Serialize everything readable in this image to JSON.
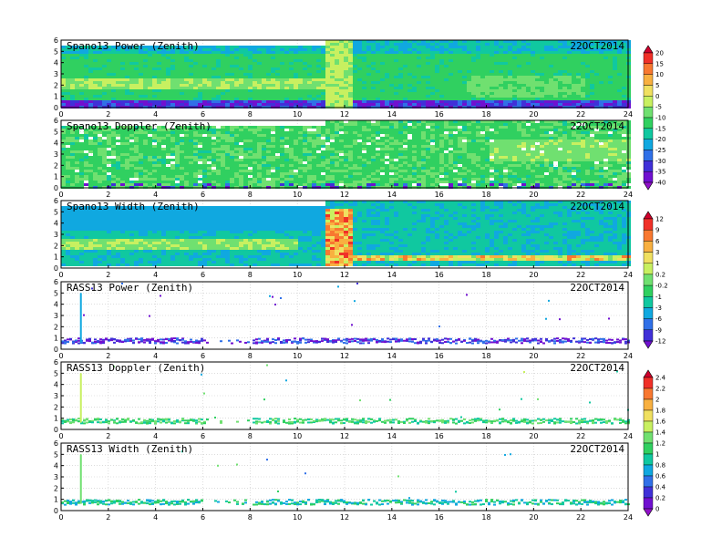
{
  "panels": [
    {
      "title": "Spano13 Power (Zenith)",
      "date": "22OCT2014",
      "kind": "power",
      "colorbar": 0
    },
    {
      "title": "Spano13 Doppler (Zenith)",
      "date": "22OCT2014",
      "kind": "doppler",
      "colorbar": 0
    },
    {
      "title": "Spano13 Width (Zenith)",
      "date": "22OCT2014",
      "kind": "width",
      "colorbar": 1
    },
    {
      "title": "RASS13 Power (Zenith)",
      "date": "22OCT2014",
      "kind": "rass_power",
      "colorbar": 1
    },
    {
      "title": "RASS13 Doppler (Zenith)",
      "date": "22OCT2014",
      "kind": "rass_doppler",
      "colorbar": 2
    },
    {
      "title": "RASS13 Width (Zenith)",
      "date": "22OCT2014",
      "kind": "rass_width",
      "colorbar": 2
    }
  ],
  "colorbars": [
    {
      "labels": [
        "20",
        "15",
        "10",
        "5",
        "0",
        "-5",
        "-10",
        "-15",
        "-20",
        "-25",
        "-30",
        "-35",
        "-40"
      ],
      "colors": [
        "#d0002c",
        "#f03028",
        "#f87830",
        "#f8b040",
        "#f0e060",
        "#c8f060",
        "#70e070",
        "#30d060",
        "#10c8a0",
        "#10a8e0",
        "#3070e8",
        "#4030d8",
        "#7010d0",
        "#9010c8"
      ]
    },
    {
      "labels": [
        "12",
        "9",
        "6",
        "3",
        "1",
        "0.2",
        "-0.2",
        "-1",
        "-3",
        "-6",
        "-9",
        "-12"
      ],
      "colors": [
        "#d0002c",
        "#f03028",
        "#f87830",
        "#f8b040",
        "#f0e060",
        "#c8f060",
        "#70e070",
        "#30d060",
        "#10c8a0",
        "#10a8e0",
        "#3070e8",
        "#4030d8",
        "#7010d0"
      ]
    },
    {
      "labels": [
        "2.4",
        "2.2",
        "2",
        "1.8",
        "1.6",
        "1.4",
        "1.2",
        "1",
        "0.8",
        "0.6",
        "0.4",
        "0.2",
        "0"
      ],
      "colors": [
        "#d0002c",
        "#f03028",
        "#f87830",
        "#f8b040",
        "#f0e060",
        "#c8f060",
        "#70e070",
        "#30d060",
        "#10c8a0",
        "#10a8e0",
        "#3070e8",
        "#4030d8",
        "#7010d0",
        "#9010c8"
      ]
    }
  ],
  "chart_data": {
    "type": "heatmap",
    "x_ticks": [
      "0",
      "2",
      "4",
      "6",
      "8",
      "10",
      "12",
      "14",
      "16",
      "18",
      "20",
      "22",
      "24"
    ],
    "y_ticks": [
      "0",
      "1",
      "2",
      "3",
      "4",
      "5",
      "6"
    ],
    "xlim": [
      0,
      24
    ],
    "ylim": [
      0,
      6
    ],
    "grid": true,
    "series": [
      {
        "name": "Spano13 Power (Zenith)",
        "dominant_range": [
          -20,
          -10
        ],
        "high_values_near_hour": 11.5
      },
      {
        "name": "Spano13 Doppler (Zenith)",
        "dominant_range": [
          -20,
          -10
        ]
      },
      {
        "name": "Spano13 Width (Zenith)",
        "dominant_range": [
          -1,
          1
        ],
        "high_values_near_hour": 11.5
      },
      {
        "name": "RASS13 Power (Zenith)",
        "dominant_range": [
          -12,
          -9
        ],
        "main_layer_height": [
          0.6,
          1.0
        ]
      },
      {
        "name": "RASS13 Doppler (Zenith)",
        "dominant_range": [
          0.8,
          1.2
        ],
        "main_layer_height": [
          0.6,
          0.9
        ]
      },
      {
        "name": "RASS13 Width (Zenith)",
        "dominant_range": [
          0.2,
          1.0
        ],
        "main_layer_height": [
          0.6,
          0.9
        ]
      }
    ]
  }
}
